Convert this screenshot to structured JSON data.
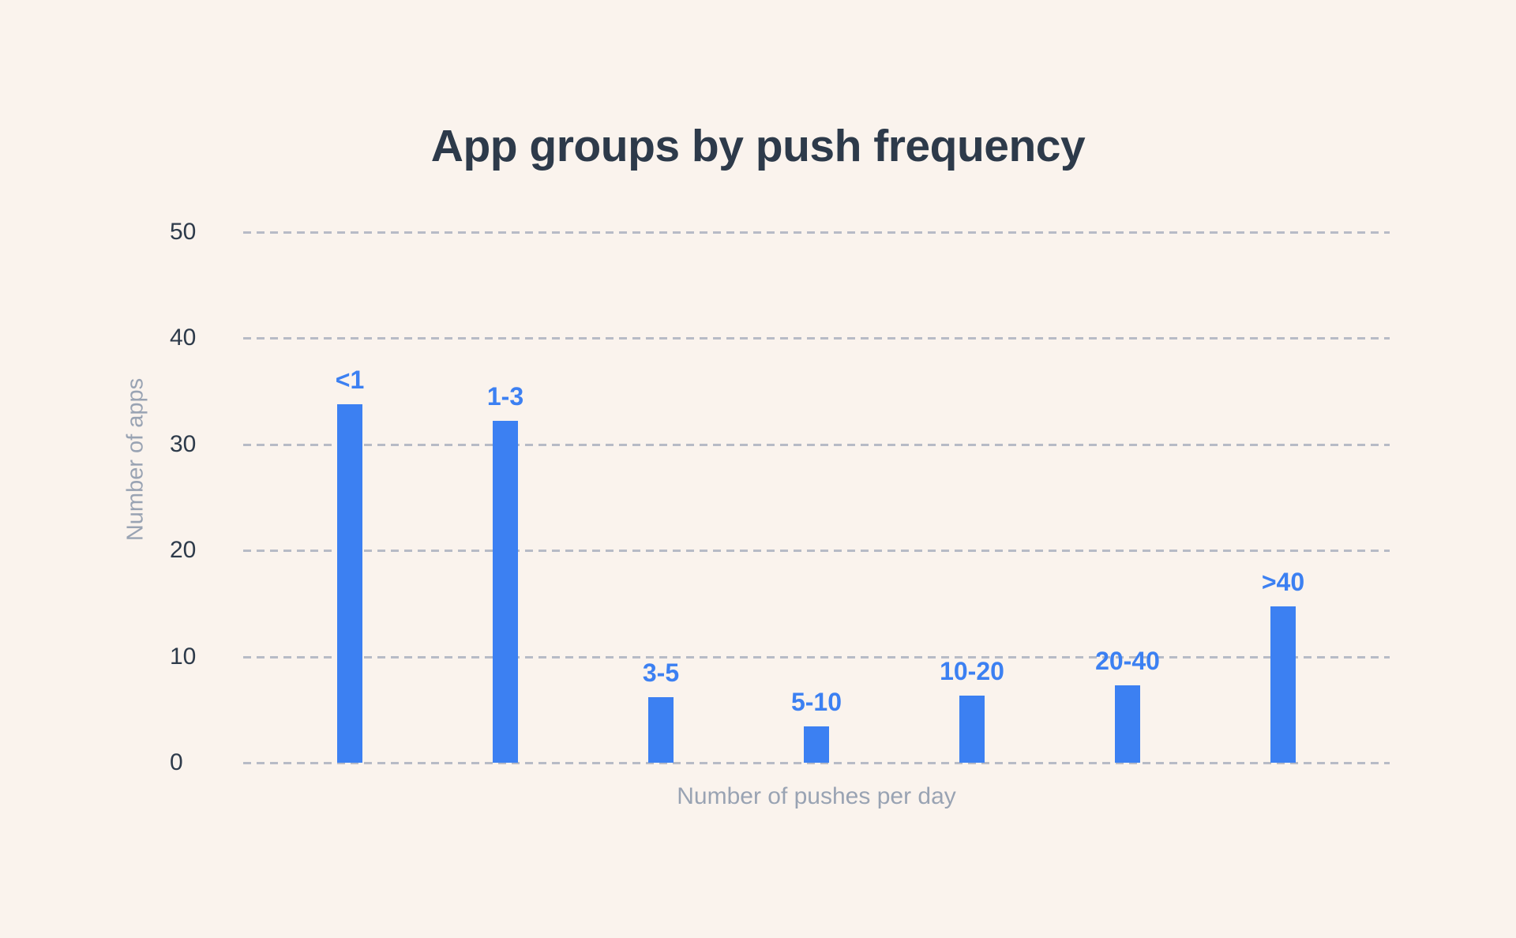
{
  "chart_data": {
    "type": "bar",
    "title": "App groups by push frequency",
    "categories": [
      "<1",
      "1-3",
      "3-5",
      "5-10",
      "10-20",
      "20-40",
      ">40"
    ],
    "values": [
      33.8,
      32.2,
      6.2,
      3.4,
      6.3,
      7.3,
      14.7
    ],
    "xlabel": "Number of pushes per day",
    "ylabel": "Number of apps",
    "ylim": [
      0,
      50
    ],
    "yticks": [
      0,
      10,
      20,
      30,
      40,
      50
    ],
    "grid": "horizontal-dashed",
    "legend": "none",
    "bar_labels_position": "above-bars",
    "colors": {
      "bar": "#3c80f2",
      "bar_label": "#3c80f2",
      "title": "#2d3a4a",
      "tick_label": "#2d3a4a",
      "axis_label": "#99a3b3",
      "gridline": "#b7bbc6",
      "background": "#faf3ed"
    }
  }
}
